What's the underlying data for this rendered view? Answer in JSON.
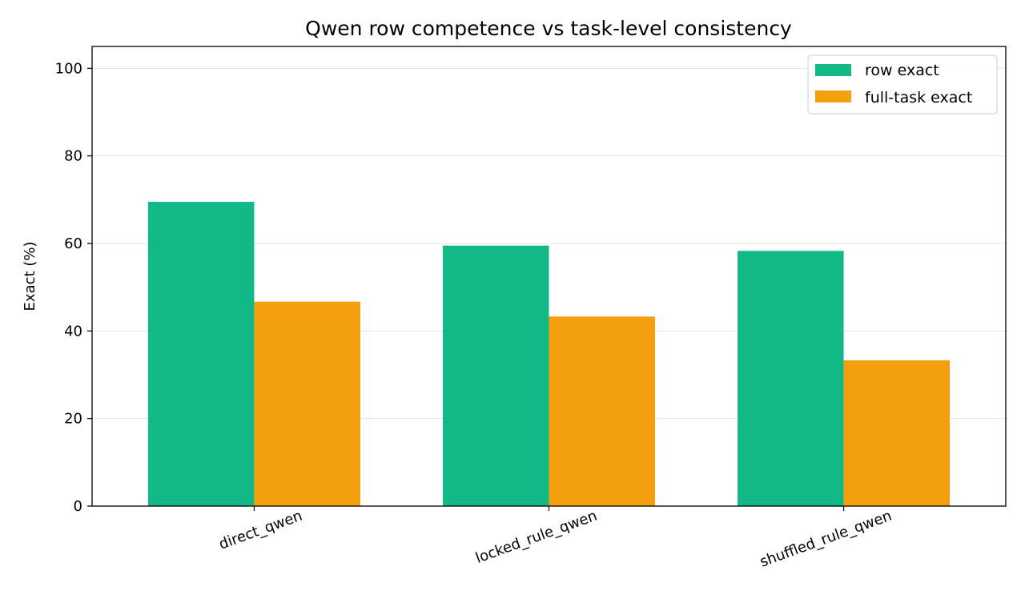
{
  "chart_data": {
    "type": "bar",
    "title": "Qwen row competence vs task-level consistency",
    "xlabel": "",
    "ylabel": "Exact (%)",
    "ylim": [
      0,
      105
    ],
    "yticks": [
      0,
      20,
      40,
      60,
      80,
      100
    ],
    "categories": [
      "direct_qwen",
      "locked_rule_qwen",
      "shuffled_rule_qwen"
    ],
    "series": [
      {
        "name": "row exact",
        "color": "#12b886",
        "values": [
          69.5,
          59.5,
          58.3
        ]
      },
      {
        "name": "full-task exact",
        "color": "#f39f0e",
        "values": [
          46.7,
          43.3,
          33.3
        ]
      }
    ],
    "grid": "horizontal",
    "legend_position": "top-right"
  }
}
